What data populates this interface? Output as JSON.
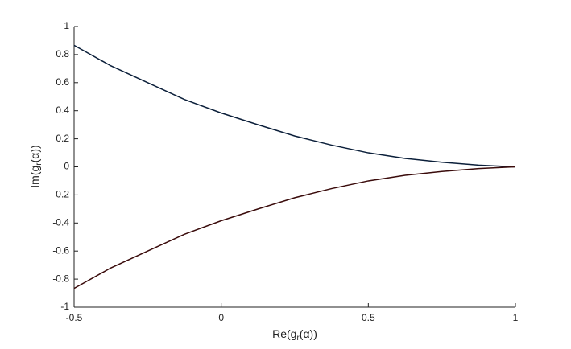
{
  "chart_data": {
    "type": "line",
    "xlabel": [
      "Re(g",
      "r",
      "(α))"
    ],
    "ylabel": [
      "Im(g",
      "r",
      "(α))"
    ],
    "x": [
      -0.5,
      -0.375,
      -0.25,
      -0.125,
      0,
      0.125,
      0.25,
      0.375,
      0.5,
      0.625,
      0.75,
      0.875,
      1
    ],
    "series": [
      {
        "color": "#0b1f3a",
        "values": [
          0.866,
          0.72,
          0.6,
          0.48,
          0.384,
          0.3,
          0.22,
          0.155,
          0.1,
          0.06,
          0.033,
          0.012,
          0
        ]
      },
      {
        "color": "#3a0b0b",
        "values": [
          -0.866,
          -0.72,
          -0.6,
          -0.48,
          -0.384,
          -0.3,
          -0.22,
          -0.155,
          -0.1,
          -0.06,
          -0.033,
          -0.012,
          0
        ]
      }
    ],
    "xlim": [
      -0.5,
      1
    ],
    "ylim": [
      -1,
      1
    ],
    "xticks": [
      -0.5,
      0,
      0.5,
      1
    ],
    "yticks": [
      -1,
      -0.8,
      -0.6,
      -0.4,
      -0.2,
      0,
      0.2,
      0.4,
      0.6,
      0.8,
      1
    ],
    "grid": false
  }
}
